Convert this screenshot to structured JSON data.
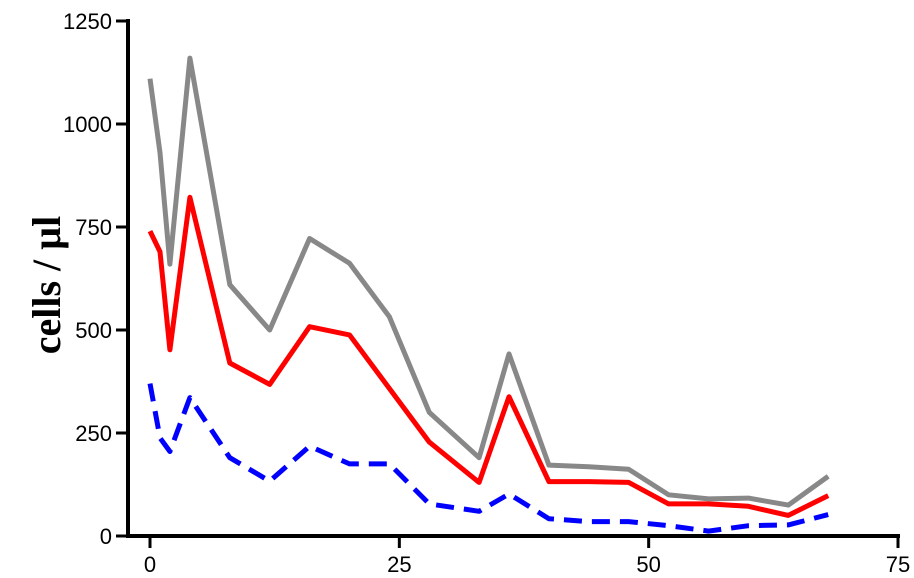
{
  "chart_data": {
    "type": "line",
    "title": "",
    "xlabel": "",
    "ylabel": "cells / µl",
    "xlim": [
      0,
      75
    ],
    "ylim": [
      0,
      1250
    ],
    "x_ticks": [
      0,
      25,
      50,
      75
    ],
    "y_ticks": [
      0,
      250,
      500,
      750,
      1000,
      1250
    ],
    "x_tick_labels": [
      "0",
      "25",
      "50",
      "75"
    ],
    "y_tick_labels": [
      "0",
      "250",
      "500",
      "750",
      "1000",
      "1250"
    ],
    "grid": false,
    "legend": "none",
    "series": [
      {
        "color": "#888888",
        "style": "solid",
        "points": [
          [
            0,
            1110
          ],
          [
            1,
            930
          ],
          [
            2,
            660
          ],
          [
            4,
            1160
          ],
          [
            8,
            610
          ],
          [
            12,
            500
          ],
          [
            16,
            722
          ],
          [
            20,
            662
          ],
          [
            24,
            532
          ],
          [
            28,
            300
          ],
          [
            33,
            190
          ],
          [
            36,
            442
          ],
          [
            40,
            172
          ],
          [
            44,
            168
          ],
          [
            48,
            162
          ],
          [
            52,
            100
          ],
          [
            56,
            90
          ],
          [
            60,
            92
          ],
          [
            64,
            75
          ],
          [
            68,
            145
          ]
        ]
      },
      {
        "color": "#ff0000",
        "style": "solid",
        "points": [
          [
            0,
            740
          ],
          [
            1,
            690
          ],
          [
            2,
            452
          ],
          [
            4,
            822
          ],
          [
            8,
            420
          ],
          [
            12,
            368
          ],
          [
            16,
            508
          ],
          [
            20,
            488
          ],
          [
            24,
            358
          ],
          [
            28,
            228
          ],
          [
            33,
            130
          ],
          [
            36,
            338
          ],
          [
            40,
            132
          ],
          [
            44,
            132
          ],
          [
            48,
            130
          ],
          [
            52,
            78
          ],
          [
            56,
            78
          ],
          [
            60,
            72
          ],
          [
            64,
            50
          ],
          [
            68,
            98
          ]
        ]
      },
      {
        "color": "#0000ff",
        "style": "dashed",
        "points": [
          [
            0,
            370
          ],
          [
            1,
            238
          ],
          [
            2,
            205
          ],
          [
            4,
            336
          ],
          [
            8,
            190
          ],
          [
            12,
            133
          ],
          [
            16,
            218
          ],
          [
            20,
            175
          ],
          [
            24,
            175
          ],
          [
            28,
            78
          ],
          [
            33,
            60
          ],
          [
            36,
            102
          ],
          [
            40,
            42
          ],
          [
            44,
            35
          ],
          [
            48,
            35
          ],
          [
            52,
            25
          ],
          [
            56,
            12
          ],
          [
            60,
            25
          ],
          [
            64,
            27
          ],
          [
            68,
            52
          ]
        ]
      }
    ]
  }
}
